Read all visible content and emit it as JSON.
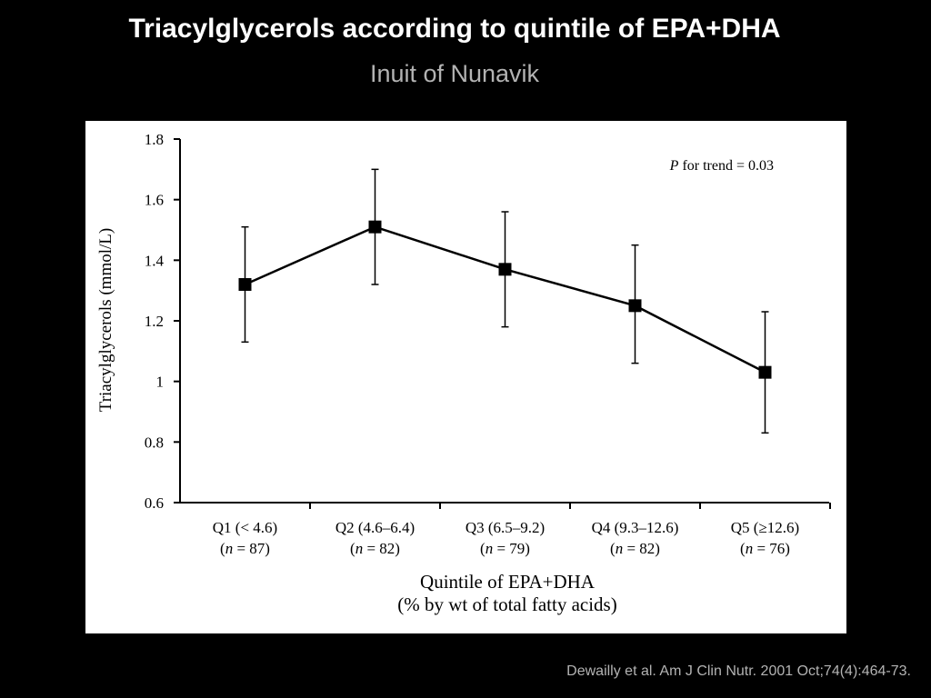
{
  "slide": {
    "title": "Triacylglycerols according to quintile of EPA+DHA",
    "subtitle": "Inuit of Nunavik",
    "citation": "Dewailly et al. Am J Clin Nutr. 2001 Oct;74(4):464-73."
  },
  "chart_data": {
    "type": "line",
    "ylabel": "Triacylglycerols (mmol/L)",
    "xlabel_line1": "Quintile of EPA+DHA",
    "xlabel_line2": "(% by wt of total fatty acids)",
    "ylim": [
      0.6,
      1.8
    ],
    "yticks": [
      0.6,
      0.8,
      1,
      1.2,
      1.4,
      1.6,
      1.8
    ],
    "ytick_labels": [
      "0.6",
      "0.8",
      "1",
      "1.2",
      "1.4",
      "1.6",
      "1.8"
    ],
    "categories": [
      {
        "label": "Q1 (< 4.6)",
        "n_label": "87"
      },
      {
        "label": "Q2 (4.6–6.4)",
        "n_label": "82"
      },
      {
        "label": "Q3 (6.5–9.2)",
        "n_label": "79"
      },
      {
        "label": "Q4 (9.3–12.6)",
        "n_label": "82"
      },
      {
        "label": "Q5 (≥12.6)",
        "n_label": "76"
      }
    ],
    "series": [
      {
        "values": [
          1.32,
          1.51,
          1.37,
          1.25,
          1.03
        ],
        "error_low": [
          1.13,
          1.32,
          1.18,
          1.06,
          0.83
        ],
        "error_high": [
          1.51,
          1.7,
          1.56,
          1.45,
          1.23
        ]
      }
    ],
    "annotation": {
      "italic_part": "P",
      "text": " for trend = 0.03"
    },
    "grid": false,
    "marker_color": "#000000"
  }
}
